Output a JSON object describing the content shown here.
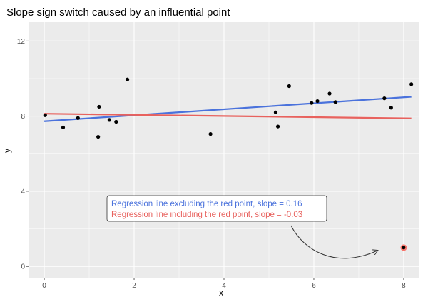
{
  "chart_data": {
    "type": "scatter",
    "title": "Slope sign switch caused by an influential point",
    "xlabel": "x",
    "ylabel": "y",
    "xlim": [
      -0.35,
      8.35
    ],
    "ylim": [
      -0.6,
      13
    ],
    "x_ticks": [
      0,
      2,
      4,
      6,
      8
    ],
    "x_tick_labels": [
      "0",
      "2",
      "4",
      "6",
      "8"
    ],
    "y_ticks": [
      0,
      4,
      8,
      12
    ],
    "y_tick_labels": [
      "0",
      "4",
      "8",
      "12"
    ],
    "grid": true,
    "points": [
      {
        "x": 0.02,
        "y": 8.05
      },
      {
        "x": 0.42,
        "y": 7.4
      },
      {
        "x": 0.75,
        "y": 7.9
      },
      {
        "x": 1.2,
        "y": 6.9
      },
      {
        "x": 1.22,
        "y": 8.5
      },
      {
        "x": 1.45,
        "y": 7.8
      },
      {
        "x": 1.6,
        "y": 7.7
      },
      {
        "x": 1.85,
        "y": 9.95
      },
      {
        "x": 3.7,
        "y": 7.05
      },
      {
        "x": 5.15,
        "y": 8.2
      },
      {
        "x": 5.2,
        "y": 7.45
      },
      {
        "x": 5.45,
        "y": 9.6
      },
      {
        "x": 5.95,
        "y": 8.7
      },
      {
        "x": 6.08,
        "y": 8.8
      },
      {
        "x": 6.35,
        "y": 9.2
      },
      {
        "x": 6.48,
        "y": 8.75
      },
      {
        "x": 7.57,
        "y": 8.95
      },
      {
        "x": 7.72,
        "y": 8.45
      },
      {
        "x": 8.17,
        "y": 9.7
      }
    ],
    "influential_point": {
      "x": 8.0,
      "y": 1.0,
      "color": "#f8766d"
    },
    "series": [
      {
        "name": "Regression line excluding the red point, slope = 0.16",
        "color": "#4a72dc",
        "x": [
          0,
          8.17
        ],
        "y": [
          7.73,
          9.03
        ]
      },
      {
        "name": "Regression line including the red point, slope = -0.03",
        "color": "#e8625e",
        "x": [
          0,
          8.17
        ],
        "y": [
          8.13,
          7.88
        ]
      }
    ],
    "legend": "bottom-center",
    "panel_background": "#ebebeb",
    "point_color": "#000000"
  }
}
